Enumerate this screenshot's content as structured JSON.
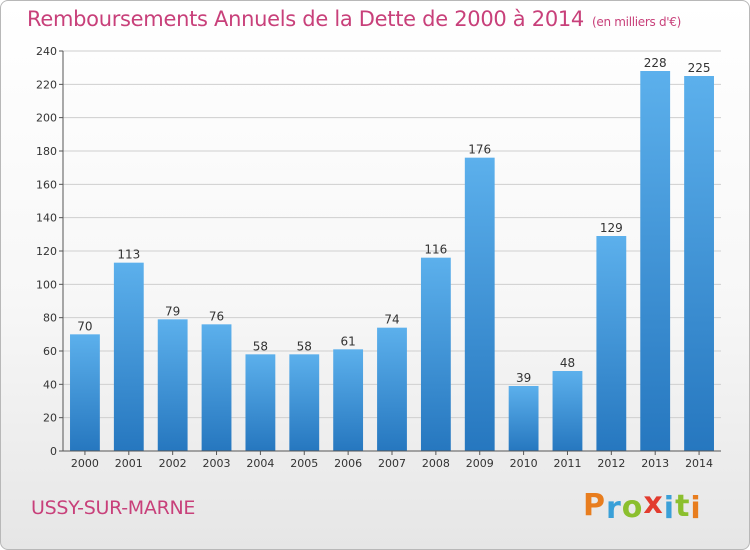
{
  "chart_data": {
    "type": "bar",
    "title": "Remboursements Annuels de la Dette de 2000 à 2014",
    "subtitle": "(en milliers d'€)",
    "categories": [
      "2000",
      "2001",
      "2002",
      "2003",
      "2004",
      "2005",
      "2006",
      "2007",
      "2008",
      "2009",
      "2010",
      "2011",
      "2012",
      "2013",
      "2014"
    ],
    "values": [
      70,
      113,
      79,
      76,
      58,
      58,
      61,
      74,
      116,
      176,
      39,
      48,
      129,
      228,
      225
    ],
    "ylim": [
      0,
      240
    ],
    "yticks": [
      0,
      20,
      40,
      60,
      80,
      100,
      120,
      140,
      160,
      180,
      200,
      220,
      240
    ],
    "grid": "horizontal",
    "bar_color": "#3a8fd4"
  },
  "footer": {
    "commune": "USSY-SUR-MARNE",
    "logo_letters": [
      "P",
      "r",
      "o",
      "x",
      "i",
      "t",
      "i"
    ],
    "logo_colors": [
      "#e87d1e",
      "#3aa0d8",
      "#8bbf2e",
      "#e23b2e",
      "#3aa0d8",
      "#8bbf2e",
      "#e87d1e"
    ]
  }
}
